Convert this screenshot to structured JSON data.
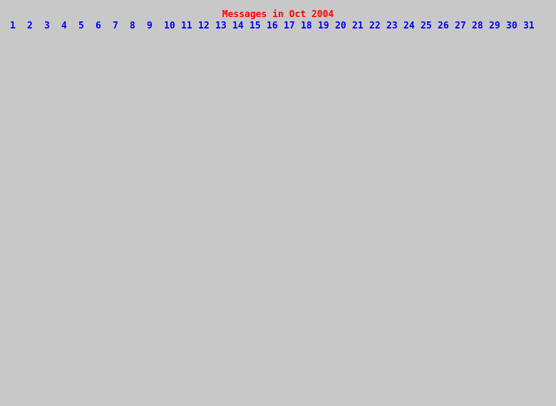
{
  "page": {
    "background_color": "#c8c8c8",
    "title_color": "#ff0000",
    "link_color": "#0000ee"
  },
  "header": {
    "title": "Messages in Oct 2004"
  },
  "day_links": [
    "1",
    "2",
    "3",
    "4",
    "5",
    "6",
    "7",
    "8",
    "9",
    "10",
    "11",
    "12",
    "13",
    "14",
    "15",
    "16",
    "17",
    "18",
    "19",
    "20",
    "21",
    "22",
    "23",
    "24",
    "25",
    "26",
    "27",
    "28",
    "29",
    "30",
    "31"
  ]
}
